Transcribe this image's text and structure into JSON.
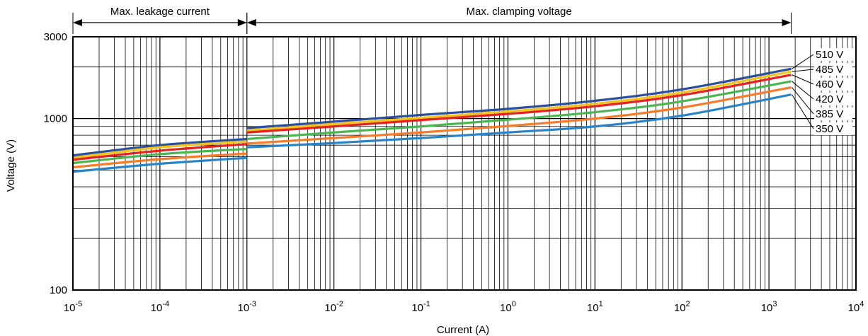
{
  "chart_data": {
    "type": "line",
    "xlabel": "Current (A)",
    "ylabel": "Voltage (V)",
    "x_scale": "log",
    "y_scale": "log",
    "xlim": [
      1e-05,
      10000.0
    ],
    "ylim": [
      100,
      3000
    ],
    "grid": true,
    "x_ticks": [
      {
        "base": "10",
        "exp": "-5",
        "value": 1e-05
      },
      {
        "base": "10",
        "exp": "-4",
        "value": 0.0001
      },
      {
        "base": "10",
        "exp": "-3",
        "value": 0.001
      },
      {
        "base": "10",
        "exp": "-2",
        "value": 0.01
      },
      {
        "base": "10",
        "exp": "-1",
        "value": 0.1
      },
      {
        "base": "10",
        "exp": "0",
        "value": 1
      },
      {
        "base": "10",
        "exp": "1",
        "value": 10
      },
      {
        "base": "10",
        "exp": "2",
        "value": 100
      },
      {
        "base": "10",
        "exp": "3",
        "value": 1000
      },
      {
        "base": "10",
        "exp": "4",
        "value": 10000
      }
    ],
    "y_ticks": [
      {
        "label": "100",
        "value": 100
      },
      {
        "label": "1000",
        "value": 1000
      },
      {
        "label": "3000",
        "value": 3000
      }
    ],
    "regions": [
      {
        "label": "Max. leakage current",
        "x_range": [
          1e-05,
          0.001
        ]
      },
      {
        "label": "Max. clamping voltage",
        "x_range": [
          0.001,
          1800
        ]
      }
    ],
    "series": [
      {
        "name": "510 V",
        "color": "#2b4f9c",
        "leakage": [
          [
            1e-05,
            610
          ],
          [
            0.0001,
            700
          ],
          [
            0.001,
            760
          ]
        ],
        "clamping": [
          [
            0.001,
            880
          ],
          [
            0.01,
            960
          ],
          [
            0.1,
            1050
          ],
          [
            1,
            1140
          ],
          [
            10,
            1270
          ],
          [
            100,
            1480
          ],
          [
            1800,
            1950
          ]
        ]
      },
      {
        "name": "485 V",
        "color": "#f2c31c",
        "leakage": [
          [
            1e-05,
            590
          ],
          [
            0.0001,
            680
          ],
          [
            0.001,
            735
          ]
        ],
        "clamping": [
          [
            0.001,
            850
          ],
          [
            0.01,
            930
          ],
          [
            0.1,
            1010
          ],
          [
            1,
            1100
          ],
          [
            10,
            1220
          ],
          [
            100,
            1420
          ],
          [
            1800,
            1880
          ]
        ]
      },
      {
        "name": "460 V",
        "color": "#e42321",
        "leakage": [
          [
            1e-05,
            575
          ],
          [
            0.0001,
            650
          ],
          [
            0.001,
            710
          ]
        ],
        "clamping": [
          [
            0.001,
            830
          ],
          [
            0.01,
            900
          ],
          [
            0.1,
            980
          ],
          [
            1,
            1065
          ],
          [
            10,
            1180
          ],
          [
            100,
            1370
          ],
          [
            1800,
            1800
          ]
        ]
      },
      {
        "name": "420 V",
        "color": "#4cb551",
        "leakage": [
          [
            1e-05,
            550
          ],
          [
            0.0001,
            620
          ],
          [
            0.001,
            665
          ]
        ],
        "clamping": [
          [
            0.001,
            760
          ],
          [
            0.01,
            830
          ],
          [
            0.1,
            900
          ],
          [
            1,
            985
          ],
          [
            10,
            1090
          ],
          [
            100,
            1260
          ],
          [
            1800,
            1650
          ]
        ]
      },
      {
        "name": "385 V",
        "color": "#f47c2b",
        "leakage": [
          [
            1e-05,
            520
          ],
          [
            0.0001,
            580
          ],
          [
            0.001,
            625
          ]
        ],
        "clamping": [
          [
            0.001,
            715
          ],
          [
            0.01,
            770
          ],
          [
            0.1,
            830
          ],
          [
            1,
            905
          ],
          [
            10,
            1000
          ],
          [
            100,
            1160
          ],
          [
            1800,
            1520
          ]
        ]
      },
      {
        "name": "350 V",
        "color": "#2a83c6",
        "leakage": [
          [
            1e-05,
            490
          ],
          [
            0.0001,
            545
          ],
          [
            0.001,
            590
          ]
        ],
        "clamping": [
          [
            0.001,
            680
          ],
          [
            0.01,
            720
          ],
          [
            0.1,
            770
          ],
          [
            1,
            830
          ],
          [
            10,
            900
          ],
          [
            100,
            1040
          ],
          [
            1800,
            1380
          ]
        ]
      }
    ]
  }
}
